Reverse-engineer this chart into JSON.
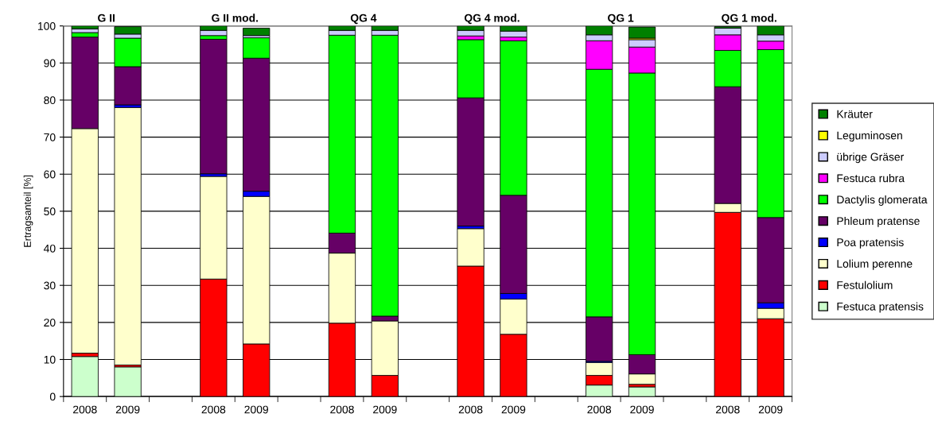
{
  "chart_data": {
    "type": "bar",
    "stacked": true,
    "ylabel": "Ertragsanteil [%]",
    "annotations": [
      "G II",
      "G II mod.",
      "QG 4",
      "QG 4 mod.",
      "QG 1",
      "QG 1 mod."
    ],
    "categories": [
      "2008",
      "2009",
      null,
      "2008",
      "2009",
      null,
      "2008",
      "2009",
      null,
      "2008",
      "2009",
      null,
      "2008",
      "2009",
      null,
      "2008",
      "2009"
    ],
    "ylim": [
      0,
      100
    ],
    "yticks": [
      0,
      10,
      20,
      30,
      40,
      50,
      60,
      70,
      80,
      90,
      100
    ],
    "grid": "y",
    "legend": "right",
    "series": [
      {
        "name": "Festuca pratensis",
        "color": "#ccffcc",
        "values": [
          10.8,
          8.0,
          null,
          null,
          null,
          null,
          null,
          null,
          null,
          null,
          null,
          null,
          3.1,
          2.6,
          null,
          null,
          null
        ]
      },
      {
        "name": "Festulolium",
        "color": "#ff0000",
        "values": [
          0.9,
          0.5,
          null,
          31.7,
          14.2,
          null,
          19.8,
          5.7,
          null,
          35.2,
          16.8,
          null,
          2.6,
          0.7,
          null,
          49.7,
          21.0
        ]
      },
      {
        "name": "Lolium perenne",
        "color": "#ffffcc",
        "values": [
          60.6,
          69.5,
          null,
          27.7,
          39.8,
          null,
          18.9,
          14.7,
          null,
          10.1,
          9.5,
          null,
          3.5,
          2.8,
          null,
          2.4,
          2.8
        ]
      },
      {
        "name": "Poa pratensis",
        "color": "#0000ff",
        "values": [
          null,
          0.7,
          null,
          0.7,
          1.4,
          null,
          null,
          null,
          null,
          0.7,
          1.5,
          null,
          0.3,
          null,
          null,
          null,
          1.5
        ]
      },
      {
        "name": "Phleum pratense",
        "color": "#660066",
        "values": [
          24.7,
          10.3,
          null,
          36.3,
          35.9,
          null,
          5.4,
          1.3,
          null,
          34.6,
          26.5,
          null,
          12.0,
          5.2,
          null,
          31.5,
          23.0
        ]
      },
      {
        "name": "Dactylis glomerata",
        "color": "#00ff00",
        "values": [
          1.2,
          7.7,
          null,
          1.0,
          5.5,
          null,
          53.4,
          75.8,
          null,
          15.7,
          41.7,
          null,
          66.8,
          76.0,
          null,
          9.8,
          45.3
        ]
      },
      {
        "name": "Festuca rubra",
        "color": "#ff00ff",
        "values": [
          null,
          null,
          null,
          null,
          null,
          null,
          null,
          null,
          null,
          1.0,
          1.0,
          null,
          7.7,
          7.0,
          null,
          4.2,
          2.3
        ]
      },
      {
        "name": "übrige Gräser",
        "color": "#ccccff",
        "values": [
          1.0,
          1.1,
          null,
          1.4,
          0.6,
          null,
          1.3,
          1.3,
          null,
          1.5,
          1.6,
          null,
          1.6,
          2.0,
          null,
          1.8,
          1.7
        ]
      },
      {
        "name": "Leguminosen",
        "color": "#ffff00",
        "values": [
          null,
          null,
          null,
          null,
          null,
          null,
          null,
          null,
          null,
          null,
          null,
          null,
          null,
          0.4,
          null,
          null,
          null
        ]
      },
      {
        "name": "Kräuter",
        "color": "#008000",
        "values": [
          0.8,
          2.0,
          null,
          1.2,
          2.0,
          null,
          1.2,
          1.2,
          null,
          1.2,
          1.4,
          null,
          2.4,
          3.0,
          null,
          0.4,
          2.4
        ]
      }
    ]
  }
}
